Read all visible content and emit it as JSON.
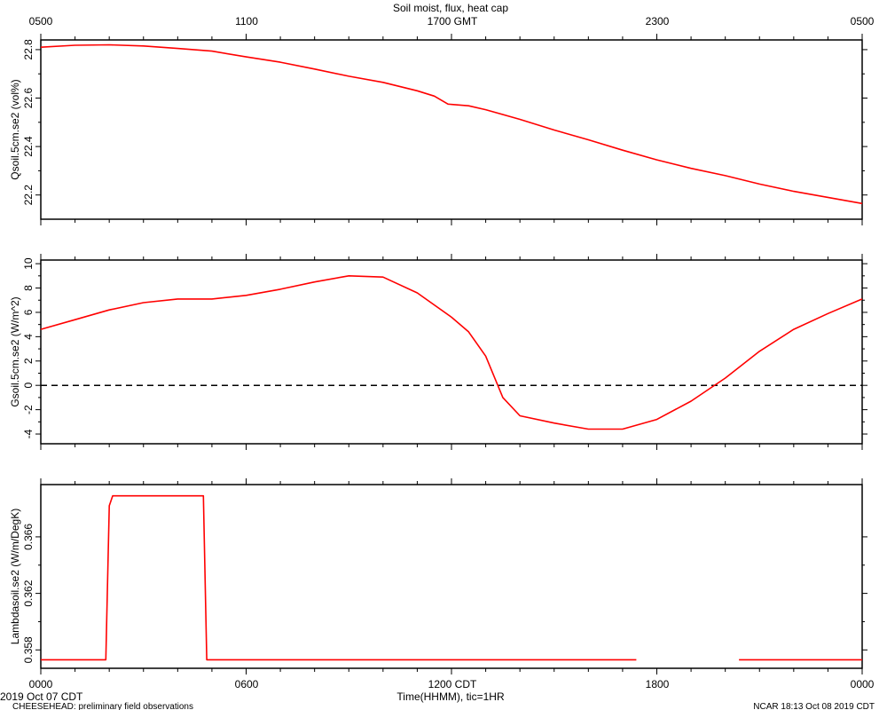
{
  "figure": {
    "title": "Soil moist, flux, heat cap",
    "top_axis_ticks": [
      "0500",
      "1100",
      "1700 GMT",
      "2300",
      "0500"
    ],
    "bottom_axis_ticks": [
      "0000",
      "0600",
      "1200 CDT",
      "1800",
      "0000"
    ],
    "xlabel": "Time(HHMM), tic=1HR",
    "date_label": "2019 Oct 07 CDT",
    "project_label": "CHEESEHEAD: preliminary field observations",
    "stamp_label": "NCAR 18:13 Oct 08 2019 CDT"
  },
  "colors": {
    "series": "#ff0000",
    "axes": "#000000",
    "zero_line": "#000000"
  },
  "chart_data": [
    {
      "type": "line",
      "ylabel": "Qsoil.5cm.se2 (vol%)",
      "xlim": [
        0,
        24
      ],
      "ylim": [
        22.1,
        22.84
      ],
      "yticks": [
        22.2,
        22.4,
        22.6,
        22.8
      ],
      "ytick_labels": [
        "22.2",
        "22.4",
        "22.6",
        "22.8"
      ],
      "series": [
        {
          "x": [
            0,
            1,
            2,
            3,
            4,
            5,
            6,
            7,
            8,
            9,
            10,
            11,
            11.5,
            11.9,
            12.5,
            13,
            14,
            15,
            16,
            17,
            18,
            19,
            20,
            21,
            22,
            23,
            24
          ],
          "y": [
            22.81,
            22.818,
            22.82,
            22.815,
            22.805,
            22.794,
            22.77,
            22.748,
            22.72,
            22.69,
            22.665,
            22.63,
            22.608,
            22.575,
            22.568,
            22.552,
            22.512,
            22.468,
            22.428,
            22.385,
            22.345,
            22.31,
            22.28,
            22.245,
            22.215,
            22.19,
            22.165
          ]
        }
      ]
    },
    {
      "type": "line",
      "ylabel": "Gsoil.5cm.se2 (W/m^2)",
      "xlim": [
        0,
        24
      ],
      "ylim": [
        -4.8,
        10.3
      ],
      "yticks": [
        -4,
        -2,
        0,
        2,
        4,
        6,
        8,
        10
      ],
      "ytick_labels": [
        "-4",
        "-2",
        "0",
        "2",
        "4",
        "6",
        "8",
        "10"
      ],
      "zero_line": 0,
      "series": [
        {
          "x": [
            0,
            1,
            2,
            3,
            4,
            5,
            6,
            7,
            8,
            9,
            10,
            11,
            12,
            12.5,
            13,
            13.5,
            14,
            15,
            16,
            17,
            18,
            19,
            20,
            21,
            22,
            23,
            24
          ],
          "y": [
            4.6,
            5.4,
            6.2,
            6.8,
            7.1,
            7.1,
            7.4,
            7.9,
            8.5,
            9.0,
            8.9,
            7.6,
            5.6,
            4.4,
            2.4,
            -1.0,
            -2.5,
            -3.1,
            -3.6,
            -3.6,
            -2.8,
            -1.3,
            0.6,
            2.8,
            4.6,
            5.9,
            7.1
          ]
        }
      ]
    },
    {
      "type": "line",
      "ylabel": "Lambdasoil.se2 (W/m/DegK)",
      "xlim": [
        0,
        24
      ],
      "ylim": [
        0.3567,
        0.3697
      ],
      "yticks": [
        0.358,
        0.362,
        0.366
      ],
      "ytick_labels": [
        "0.358",
        "0.362",
        "0.366"
      ],
      "series": [
        {
          "segments": [
            {
              "x": [
                0,
                1.9,
                2.0,
                2.1,
                4.75,
                4.85,
                17.4
              ],
              "y": [
                0.3573,
                0.3573,
                0.3682,
                0.3689,
                0.3689,
                0.3573,
                0.3573
              ]
            },
            {
              "x": [
                20.4,
                24
              ],
              "y": [
                0.3573,
                0.3573
              ]
            }
          ]
        }
      ]
    }
  ]
}
